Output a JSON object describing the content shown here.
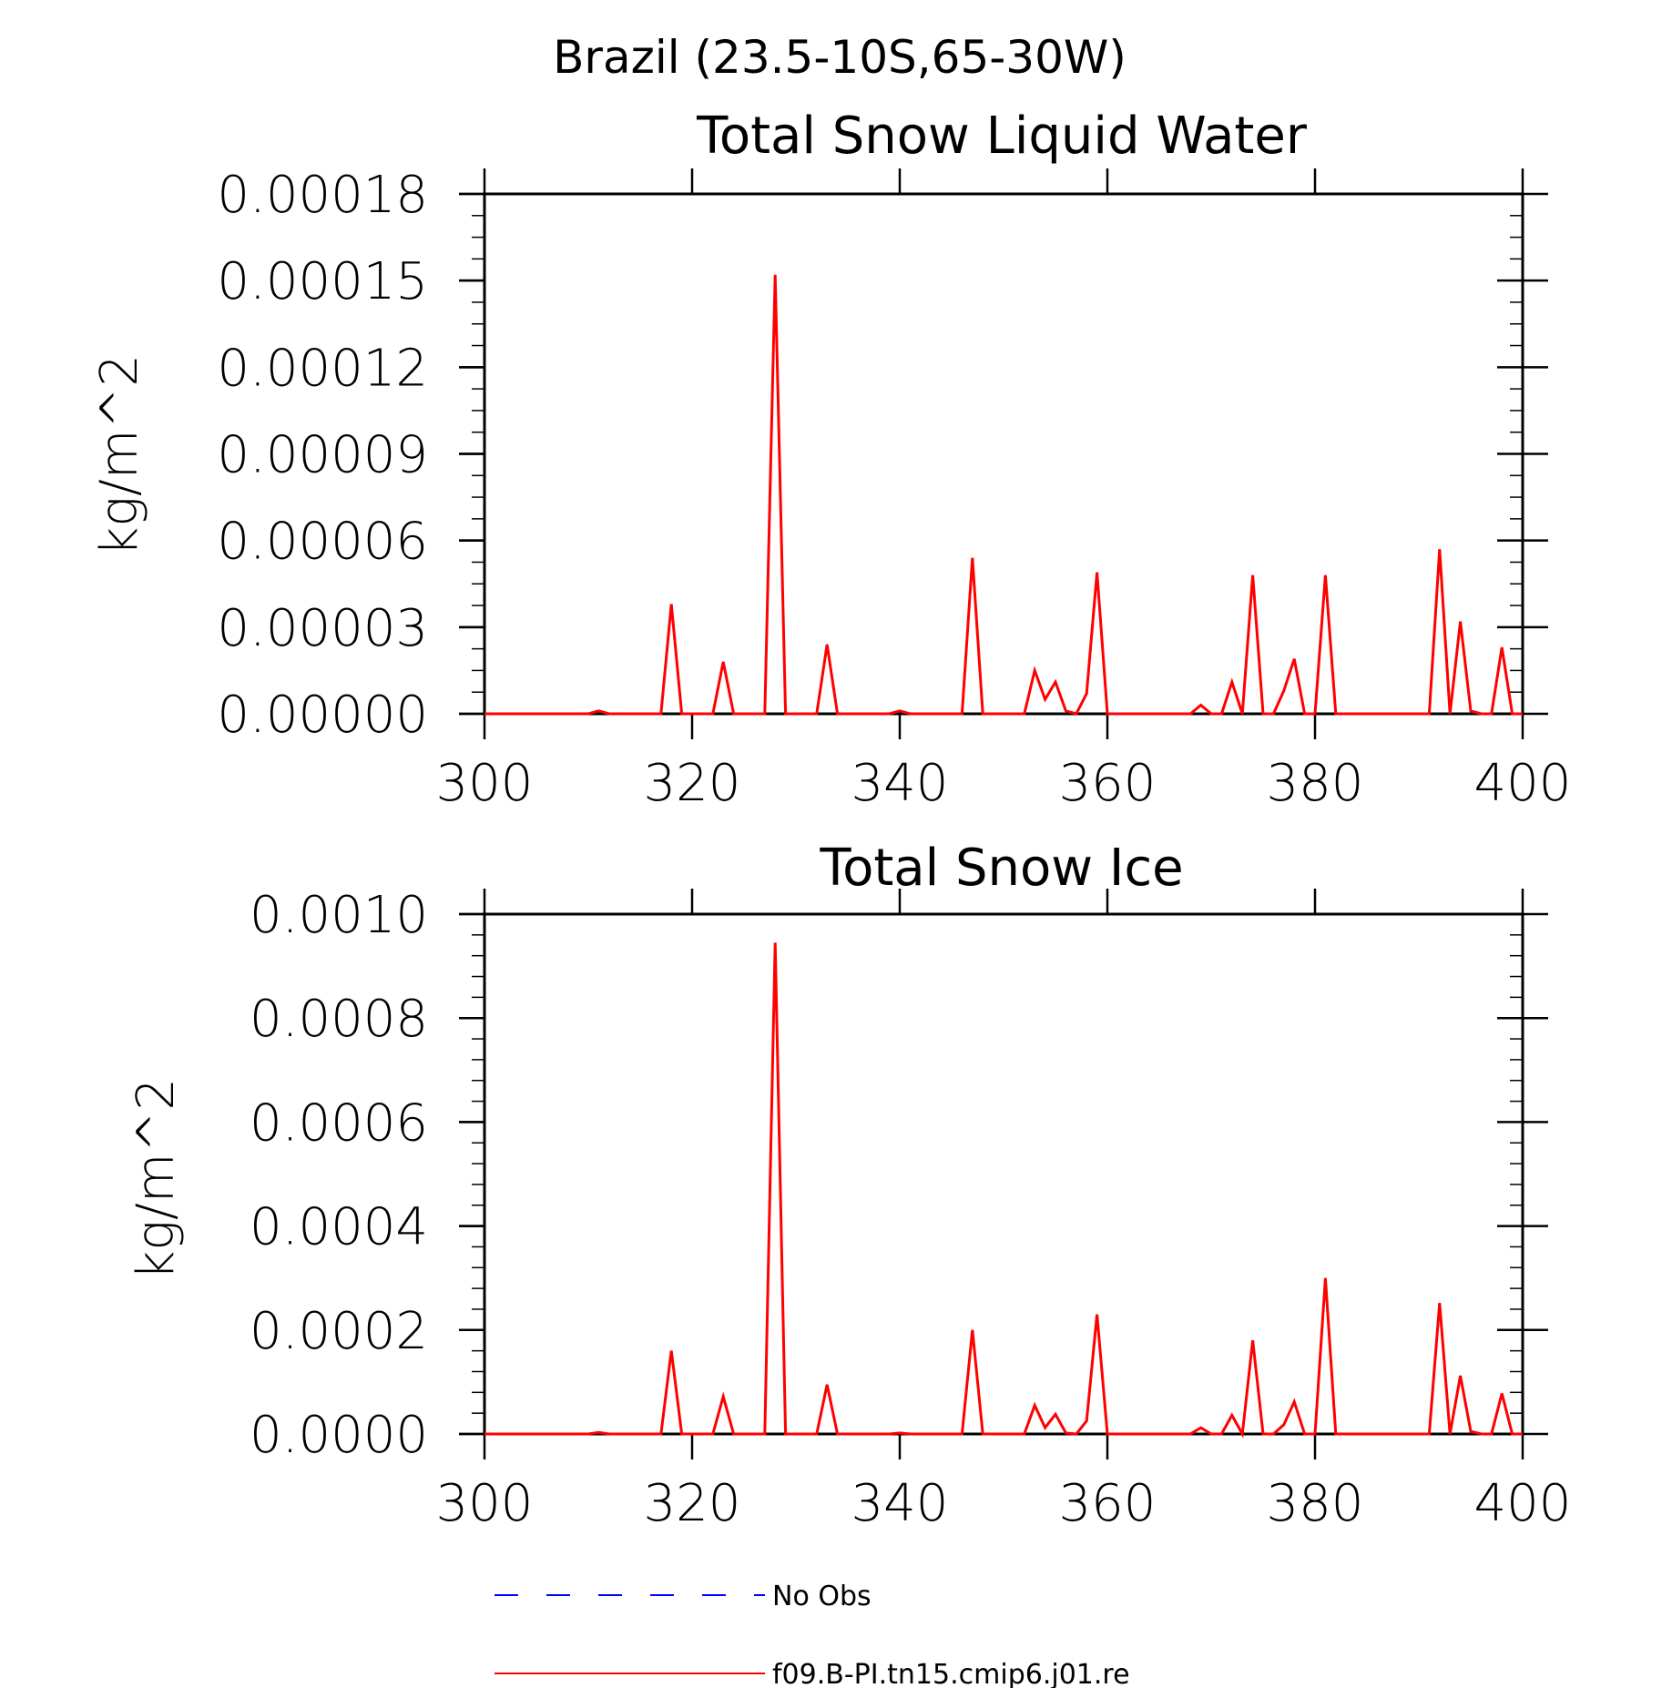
{
  "figure_title": "Brazil (23.5-10S,65-30W)",
  "chart_data": [
    {
      "type": "line",
      "title": "Total Snow Liquid Water",
      "xlabel": "",
      "ylabel": "kg/m^2",
      "xlim": [
        300,
        400
      ],
      "ylim": [
        0,
        0.00018
      ],
      "xticks": [
        300,
        320,
        340,
        360,
        380,
        400
      ],
      "xtick_labels": [
        "300",
        "320",
        "340",
        "360",
        "380",
        "400"
      ],
      "yticks": [
        0,
        3e-05,
        6e-05,
        9e-05,
        0.00012,
        0.00015,
        0.00018
      ],
      "ytick_labels": [
        "0.00000",
        "0.00003",
        "0.00006",
        "0.00009",
        "0.00012",
        "0.00015",
        "0.00018"
      ],
      "series": [
        {
          "name": "f09.B-PI.tn15.cmip6.j01.re",
          "color": "#ff0000",
          "x": [
            300,
            310,
            311,
            312,
            317,
            318,
            319,
            322,
            323,
            324,
            327,
            328,
            329,
            332,
            333,
            334,
            339,
            340,
            341,
            346,
            347,
            348,
            352,
            353,
            354,
            355,
            356,
            357,
            358,
            359,
            360,
            368,
            369,
            370,
            371,
            372,
            373,
            374,
            375,
            376,
            377,
            378,
            379,
            380,
            381,
            382,
            391,
            392,
            393,
            394,
            395,
            396,
            397,
            398,
            399,
            400
          ],
          "y": [
            0,
            0,
            1e-06,
            0,
            0,
            3.8e-05,
            0,
            0,
            1.8e-05,
            0,
            0,
            0.000152,
            0,
            0,
            2.4e-05,
            0,
            0,
            1e-06,
            0,
            0,
            5.4e-05,
            0,
            0,
            1.5e-05,
            5e-06,
            1.1e-05,
            1e-06,
            0,
            7e-06,
            4.9e-05,
            0,
            0,
            3e-06,
            0,
            0,
            1.1e-05,
            0,
            4.8e-05,
            0,
            0,
            8e-06,
            1.9e-05,
            0,
            0,
            4.8e-05,
            0,
            0,
            5.7e-05,
            0,
            3.2e-05,
            1e-06,
            0,
            0,
            2.3e-05,
            0,
            0
          ]
        }
      ]
    },
    {
      "type": "line",
      "title": "Total Snow Ice",
      "xlabel": "",
      "ylabel": "kg/m^2",
      "xlim": [
        300,
        400
      ],
      "ylim": [
        0,
        0.001
      ],
      "xticks": [
        300,
        320,
        340,
        360,
        380,
        400
      ],
      "xtick_labels": [
        "300",
        "320",
        "340",
        "360",
        "380",
        "400"
      ],
      "yticks": [
        0,
        0.0002,
        0.0004,
        0.0006,
        0.0008,
        0.001
      ],
      "ytick_labels": [
        "0.0000",
        "0.0002",
        "0.0004",
        "0.0006",
        "0.0008",
        "0.0010"
      ],
      "series": [
        {
          "name": "f09.B-PI.tn15.cmip6.j01.re",
          "color": "#ff0000",
          "x": [
            300,
            310,
            311,
            312,
            317,
            318,
            319,
            322,
            323,
            324,
            327,
            328,
            329,
            332,
            333,
            334,
            339,
            340,
            341,
            346,
            347,
            348,
            352,
            353,
            354,
            355,
            356,
            357,
            358,
            359,
            360,
            368,
            369,
            370,
            371,
            372,
            373,
            374,
            375,
            376,
            377,
            378,
            379,
            380,
            381,
            382,
            391,
            392,
            393,
            394,
            395,
            396,
            397,
            398,
            399,
            400
          ],
          "y": [
            0,
            0,
            3e-06,
            0,
            0,
            0.00016,
            0,
            0,
            7.2e-05,
            0,
            0,
            0.000945,
            0,
            0,
            9.5e-05,
            0,
            0,
            2e-06,
            0,
            0,
            0.0002,
            0,
            0,
            5.5e-05,
            1.2e-05,
            3.8e-05,
            2e-06,
            0,
            2.5e-05,
            0.00023,
            0,
            0,
            1.2e-05,
            0,
            0,
            3.6e-05,
            0,
            0.00018,
            0,
            0,
            1.8e-05,
            6.2e-05,
            0,
            0,
            0.0003,
            0,
            0,
            0.000252,
            0,
            0.000112,
            5e-06,
            0,
            0,
            7.8e-05,
            0,
            0
          ]
        }
      ]
    }
  ],
  "legend": [
    {
      "label": "No Obs",
      "color": "#0000ff",
      "style": "dashed"
    },
    {
      "label": "f09.B-PI.tn15.cmip6.j01.re",
      "color": "#ff0000",
      "style": "solid"
    }
  ]
}
